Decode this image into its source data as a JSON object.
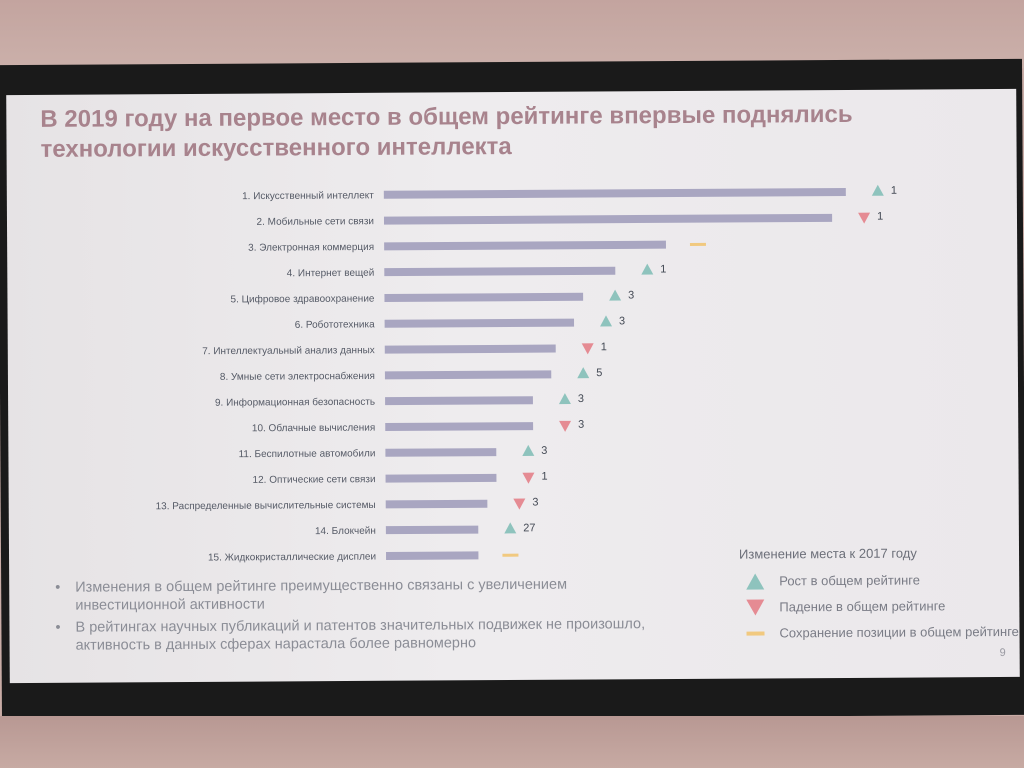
{
  "slide": {
    "title_line1": "В 2019 году на первое место в общем рейтинге впервые поднялись",
    "title_line2": "технологии искусственного интеллекта",
    "page_number": "9"
  },
  "colors": {
    "bar": "#a9a6c1",
    "up": "#8ec3bd",
    "down": "#e58b93",
    "same": "#f1c97f",
    "title": "#a8838d"
  },
  "chart_data": {
    "type": "bar",
    "orientation": "horizontal",
    "categories": [
      "1. Искусственный интеллект",
      "2. Мобильные сети связи",
      "3. Электронная коммерция",
      "4. Интернет вещей",
      "5. Цифровое здравоохранение",
      "6. Робототехника",
      "7. Интеллектуальный анализ данных",
      "8. Умные сети электроснабжения",
      "9. Информационная безопасность",
      "10. Облачные вычисления",
      "11. Беспилотные автомобили",
      "12. Оптические сети связи",
      "13. Распределенные вычислительные системы",
      "14. Блокчейн",
      "15. Жидкокристаллические дисплеи"
    ],
    "values": [
      100,
      97,
      61,
      50,
      43,
      41,
      37,
      36,
      32,
      32,
      24,
      24,
      22,
      20,
      20
    ],
    "xlim": [
      0,
      100
    ],
    "changes": [
      {
        "direction": "up",
        "label": "1"
      },
      {
        "direction": "down",
        "label": "1"
      },
      {
        "direction": "same",
        "label": ""
      },
      {
        "direction": "up",
        "label": "1"
      },
      {
        "direction": "up",
        "label": "3"
      },
      {
        "direction": "up",
        "label": "3"
      },
      {
        "direction": "down",
        "label": "1"
      },
      {
        "direction": "up",
        "label": "5"
      },
      {
        "direction": "up",
        "label": "3"
      },
      {
        "direction": "down",
        "label": "3"
      },
      {
        "direction": "up",
        "label": "3"
      },
      {
        "direction": "down",
        "label": "1"
      },
      {
        "direction": "down",
        "label": "3"
      },
      {
        "direction": "up",
        "label": "27"
      },
      {
        "direction": "same",
        "label": ""
      }
    ],
    "legend": {
      "title": "Изменение места к 2017 году",
      "items": [
        {
          "symbol": "up",
          "label": "Рост в общем рейтинге"
        },
        {
          "symbol": "down",
          "label": "Падение в общем рейтинге"
        },
        {
          "symbol": "same",
          "label": "Сохранение позиции в общем рейтинге"
        }
      ]
    },
    "grid": false
  },
  "bullets": [
    "Изменения в общем рейтинге преимущественно связаны с увеличением инвестиционной активности",
    "В рейтингах научных публикаций и патентов значительных подвижек не произошло, активность в данных сферах нарастала более равномерно"
  ]
}
